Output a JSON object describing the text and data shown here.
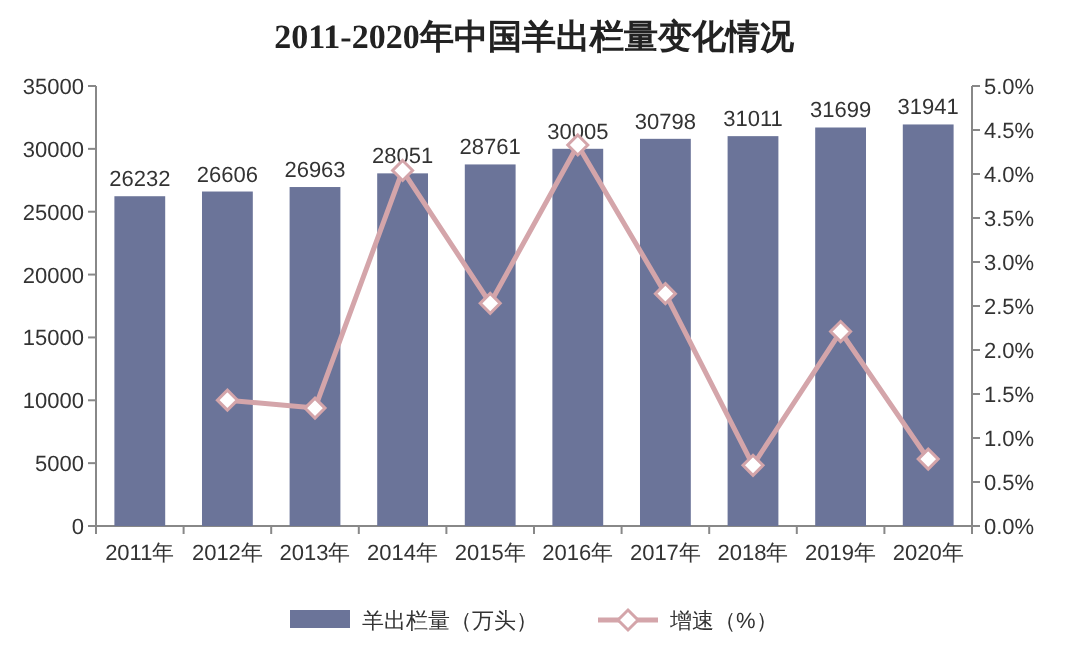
{
  "chart_data": {
    "type": "bar",
    "title": "2011-2020年中国羊出栏量变化情况",
    "categories": [
      "2011年",
      "2012年",
      "2013年",
      "2014年",
      "2015年",
      "2016年",
      "2017年",
      "2018年",
      "2019年",
      "2020年"
    ],
    "series": [
      {
        "name": "羊出栏量（万头）",
        "color": "#6b7499",
        "values": [
          26232,
          26606,
          26963,
          28051,
          28761,
          30005,
          30798,
          31011,
          31699,
          31941
        ],
        "value_labels": [
          "26232",
          "26606",
          "26963",
          "28051",
          "28761",
          "30005",
          "30798",
          "31011",
          "31699",
          "31941"
        ]
      },
      {
        "name": "增速（%）",
        "type": "line",
        "axis": "y2",
        "color": "#d4a5aa",
        "marker": "diamond",
        "line_style": "solid",
        "values": [
          null,
          1.43,
          1.34,
          4.04,
          2.53,
          4.33,
          2.64,
          0.69,
          2.21,
          0.76
        ]
      }
    ],
    "ylim": [
      0,
      35000
    ],
    "yticks": [
      0,
      5000,
      10000,
      15000,
      20000,
      25000,
      30000,
      35000
    ],
    "y2lim": [
      0,
      5
    ],
    "y2ticks": [
      {
        "value": 0,
        "label": "0.0%"
      },
      {
        "value": 0.5,
        "label": "0.5%"
      },
      {
        "value": 1,
        "label": "1.0%"
      },
      {
        "value": 1.5,
        "label": "1.5%"
      },
      {
        "value": 2,
        "label": "2.0%"
      },
      {
        "value": 2.5,
        "label": "2.5%"
      },
      {
        "value": 3,
        "label": "3.0%"
      },
      {
        "value": 3.5,
        "label": "3.5%"
      },
      {
        "value": 4,
        "label": "4.0%"
      },
      {
        "value": 4.5,
        "label": "4.5%"
      },
      {
        "value": 5,
        "label": "5.0%"
      }
    ],
    "legend": "bottom",
    "grid": false
  }
}
